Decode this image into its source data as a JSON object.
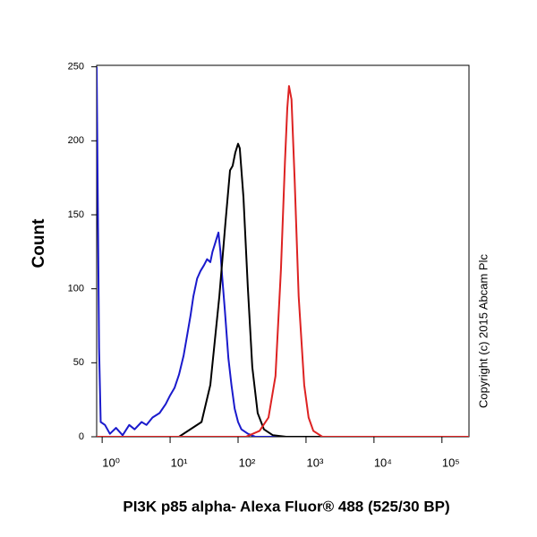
{
  "chart_data": {
    "type": "histogram-lines",
    "x_label": "PI3K p85 alpha- Alexa Fluor® 488 (525/30 BP)",
    "y_label": "Count",
    "annotation": "Copyright (c) 2015 Abcam Plc",
    "xscale": "log",
    "xlim": [
      0.83,
      250000
    ],
    "ylim": [
      0,
      251
    ],
    "xticks": [
      {
        "value": 1,
        "label": "10⁰"
      },
      {
        "value": 10,
        "label": "10¹"
      },
      {
        "value": 100,
        "label": "10²"
      },
      {
        "value": 1000,
        "label": "10³"
      },
      {
        "value": 10000,
        "label": "10⁴"
      },
      {
        "value": 100000,
        "label": "10⁵"
      }
    ],
    "yticks": [
      0,
      50,
      100,
      150,
      200,
      250
    ],
    "series": [
      {
        "color": "#1a1acc",
        "x": [
          0.83,
          0.9,
          0.95,
          1.1,
          1.3,
          1.6,
          2.0,
          2.5,
          3.0,
          3.8,
          4.5,
          5.5,
          7,
          8.6,
          10,
          11.6,
          13.5,
          15.8,
          18,
          20,
          22,
          25,
          28,
          31.6,
          35,
          39,
          42,
          45.5,
          49,
          51.4,
          55,
          58,
          64,
          72,
          80,
          89,
          100,
          112,
          140,
          180,
          250000
        ],
        "values": [
          250,
          60,
          10,
          8,
          2,
          6,
          1,
          8,
          5,
          10,
          8,
          13,
          16,
          22,
          28,
          33,
          42,
          55,
          70,
          82,
          95,
          107,
          112,
          116,
          120,
          118,
          125,
          130,
          135,
          138,
          125,
          110,
          85,
          53,
          35,
          19,
          10,
          5,
          2,
          0,
          0
        ]
      },
      {
        "color": "#000000",
        "x": [
          0.83,
          13.5,
          29,
          39,
          53,
          65,
          76,
          83,
          91,
          100,
          106,
          120,
          139,
          162,
          194,
          240,
          325,
          510,
          250000
        ],
        "values": [
          0,
          0,
          10,
          35,
          95,
          144,
          180,
          183,
          192,
          198,
          195,
          162,
          101,
          47,
          16,
          5,
          1,
          0,
          0
        ]
      },
      {
        "color": "#dd2222",
        "x": [
          0.83,
          130,
          207,
          280,
          355,
          427,
          490,
          530,
          562,
          612,
          680,
          780,
          940,
          1090,
          1280,
          1740,
          250000
        ],
        "values": [
          0,
          0,
          4,
          13,
          41,
          113,
          186,
          222,
          237,
          228,
          174,
          95,
          35,
          13,
          4,
          0,
          0
        ]
      }
    ]
  }
}
